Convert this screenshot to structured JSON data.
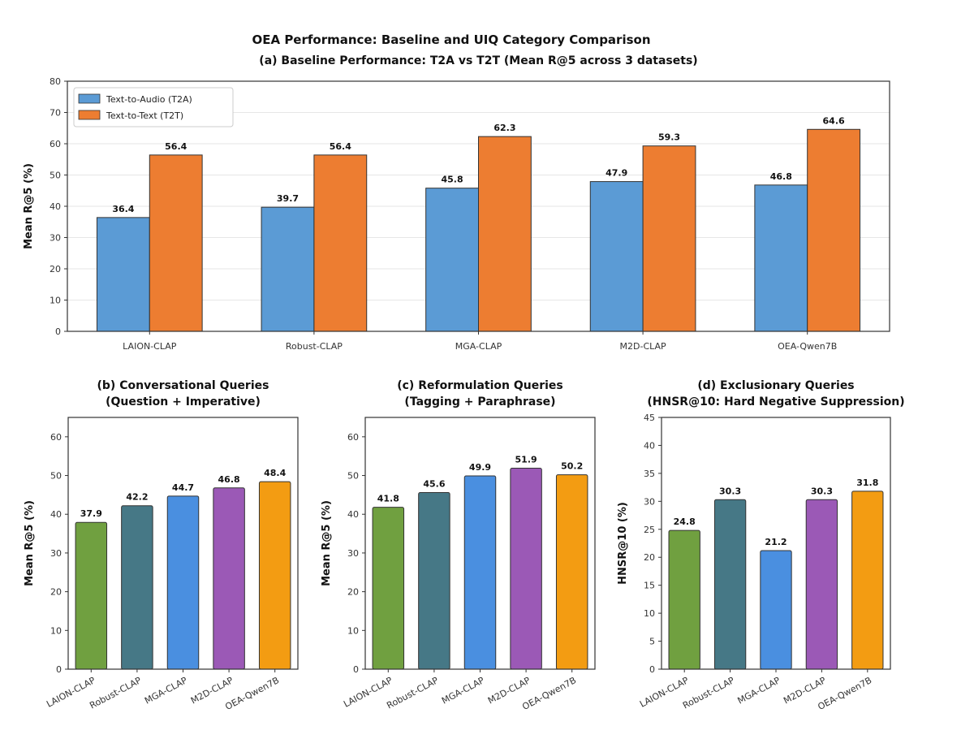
{
  "figure": {
    "title": "OEA Performance: Baseline and UIQ Category Comparison"
  },
  "chart_data": [
    {
      "type": "bar",
      "title": "(a) Baseline Performance: T2A vs T2T (Mean R@5 across 3 datasets)",
      "ylabel": "Mean R@5 (%)",
      "xlabel": "",
      "categories": [
        "LAION-CLAP",
        "Robust-CLAP",
        "MGA-CLAP",
        "M2D-CLAP",
        "OEA-Qwen7B"
      ],
      "series": [
        {
          "name": "Text-to-Audio (T2A)",
          "color": "#5b9bd5",
          "values": [
            36.4,
            39.7,
            45.8,
            47.9,
            46.8
          ]
        },
        {
          "name": "Text-to-Text (T2T)",
          "color": "#ed7d31",
          "values": [
            56.4,
            56.4,
            62.3,
            59.3,
            64.6
          ]
        }
      ],
      "ylim": [
        0,
        80
      ],
      "yticks": [
        0,
        10,
        20,
        30,
        40,
        50,
        60,
        70,
        80
      ],
      "grid": true,
      "legend": "top-left"
    },
    {
      "type": "bar",
      "title": "(b) Conversational Queries\n(Question + Imperative)",
      "ylabel": "Mean R@5 (%)",
      "xlabel": "",
      "categories": [
        "LAION-CLAP",
        "Robust-CLAP",
        "MGA-CLAP",
        "M2D-CLAP",
        "OEA-Qwen7B"
      ],
      "values": [
        37.9,
        42.2,
        44.7,
        46.8,
        48.4
      ],
      "colors": [
        "#70a040",
        "#467886",
        "#4a8fe0",
        "#9b59b6",
        "#f39c12"
      ],
      "ylim": [
        0,
        65
      ],
      "yticks": [
        0,
        10,
        20,
        30,
        40,
        50,
        60
      ],
      "grid": false
    },
    {
      "type": "bar",
      "title": "(c) Reformulation Queries\n(Tagging + Paraphrase)",
      "ylabel": "Mean R@5 (%)",
      "xlabel": "",
      "categories": [
        "LAION-CLAP",
        "Robust-CLAP",
        "MGA-CLAP",
        "M2D-CLAP",
        "OEA-Qwen7B"
      ],
      "values": [
        41.8,
        45.6,
        49.9,
        51.9,
        50.2
      ],
      "colors": [
        "#70a040",
        "#467886",
        "#4a8fe0",
        "#9b59b6",
        "#f39c12"
      ],
      "ylim": [
        0,
        65
      ],
      "yticks": [
        0,
        10,
        20,
        30,
        40,
        50,
        60
      ],
      "grid": false
    },
    {
      "type": "bar",
      "title": "(d) Exclusionary Queries\n(HNSR@10: Hard Negative Suppression)",
      "ylabel": "HNSR@10 (%)",
      "xlabel": "",
      "categories": [
        "LAION-CLAP",
        "Robust-CLAP",
        "MGA-CLAP",
        "M2D-CLAP",
        "OEA-Qwen7B"
      ],
      "values": [
        24.8,
        30.3,
        21.2,
        30.3,
        31.8
      ],
      "colors": [
        "#70a040",
        "#467886",
        "#4a8fe0",
        "#9b59b6",
        "#f39c12"
      ],
      "ylim": [
        0,
        45
      ],
      "yticks": [
        0,
        5,
        10,
        15,
        20,
        25,
        30,
        35,
        40,
        45
      ],
      "grid": false
    }
  ]
}
